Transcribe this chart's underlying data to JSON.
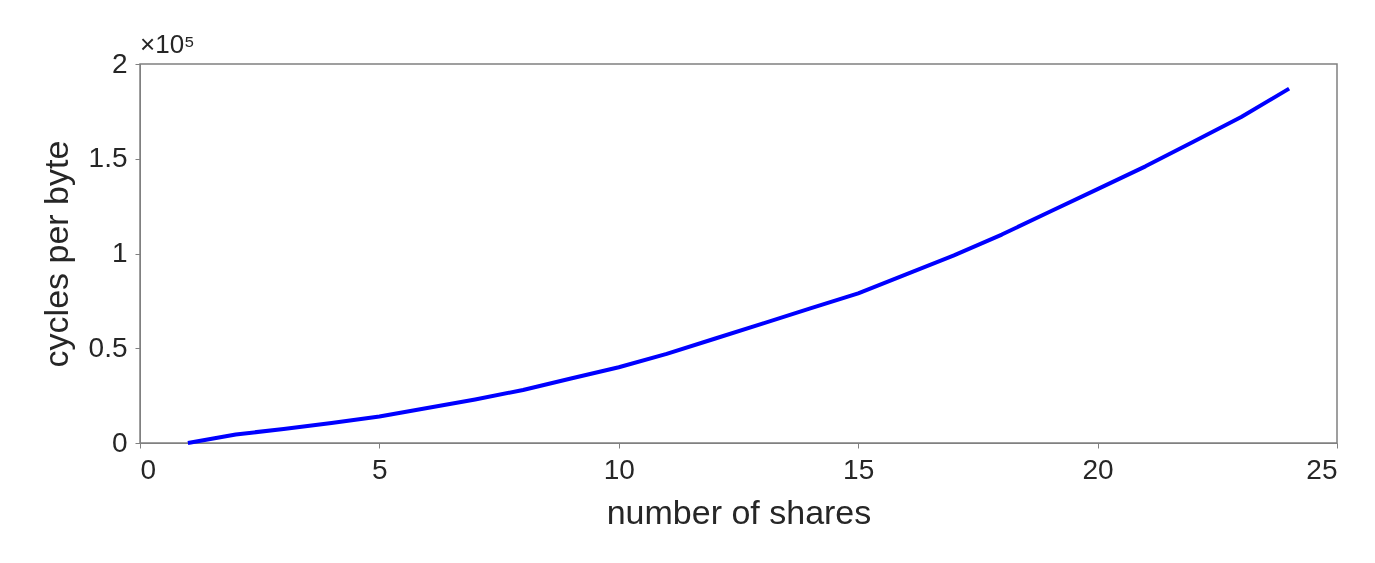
{
  "chart_data": {
    "type": "line",
    "xlabel": "number of shares",
    "ylabel": "cycles per byte",
    "annotations": [
      "×10⁵"
    ],
    "x": [
      1,
      2,
      3,
      4,
      5,
      6,
      7,
      8,
      9,
      10,
      11,
      12,
      13,
      14,
      15,
      16,
      17,
      18,
      19,
      20,
      21,
      22,
      23,
      24
    ],
    "series": [
      {
        "color": "#0000ff",
        "values": [
          0,
          0.045,
          0.074,
          0.105,
          0.14,
          0.185,
          0.23,
          0.28,
          0.34,
          0.4,
          0.47,
          0.55,
          0.63,
          0.71,
          0.79,
          0.89,
          0.99,
          1.1,
          1.22,
          1.34,
          1.46,
          1.59,
          1.72,
          1.87
        ]
      }
    ],
    "xlim": [
      0,
      25
    ],
    "xticks": [
      0,
      5,
      10,
      15,
      20,
      25
    ],
    "ylim": [
      0,
      2
    ],
    "yticks": [
      0,
      0.5,
      1,
      1.5,
      2
    ],
    "grid": false,
    "marker": "none",
    "line_style": "solid"
  }
}
